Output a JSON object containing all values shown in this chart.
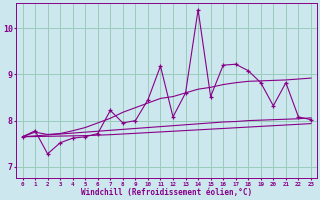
{
  "xlabel": "Windchill (Refroidissement éolien,°C)",
  "bg_color": "#cce8ee",
  "line_color": "#880088",
  "grid_color": "#99ccbb",
  "x_hours": [
    0,
    1,
    2,
    3,
    4,
    5,
    6,
    7,
    8,
    9,
    10,
    11,
    12,
    13,
    14,
    15,
    16,
    17,
    18,
    19,
    20,
    21,
    22,
    23
  ],
  "main_line": [
    7.65,
    7.78,
    7.28,
    7.52,
    7.62,
    7.65,
    7.72,
    8.22,
    7.95,
    8.0,
    8.45,
    9.18,
    8.08,
    8.6,
    10.4,
    8.52,
    9.2,
    9.22,
    9.08,
    8.82,
    8.32,
    8.82,
    8.08,
    8.02
  ],
  "upper_band": [
    7.65,
    7.75,
    7.7,
    7.72,
    7.78,
    7.85,
    7.95,
    8.05,
    8.18,
    8.28,
    8.38,
    8.48,
    8.52,
    8.6,
    8.68,
    8.72,
    8.78,
    8.82,
    8.85,
    8.86,
    8.87,
    8.88,
    8.9,
    8.92
  ],
  "lower_band1": [
    7.65,
    7.67,
    7.69,
    7.71,
    7.73,
    7.75,
    7.77,
    7.79,
    7.81,
    7.83,
    7.85,
    7.87,
    7.89,
    7.91,
    7.93,
    7.95,
    7.97,
    7.98,
    8.0,
    8.01,
    8.02,
    8.03,
    8.04,
    8.06
  ],
  "lower_band2": [
    7.65,
    7.655,
    7.66,
    7.665,
    7.67,
    7.675,
    7.685,
    7.695,
    7.71,
    7.725,
    7.74,
    7.755,
    7.77,
    7.785,
    7.8,
    7.815,
    7.83,
    7.845,
    7.86,
    7.875,
    7.89,
    7.905,
    7.92,
    7.935
  ],
  "ylim": [
    6.75,
    10.55
  ],
  "yticks": [
    7,
    8,
    9,
    10
  ],
  "xlim": [
    -0.5,
    23.5
  ]
}
